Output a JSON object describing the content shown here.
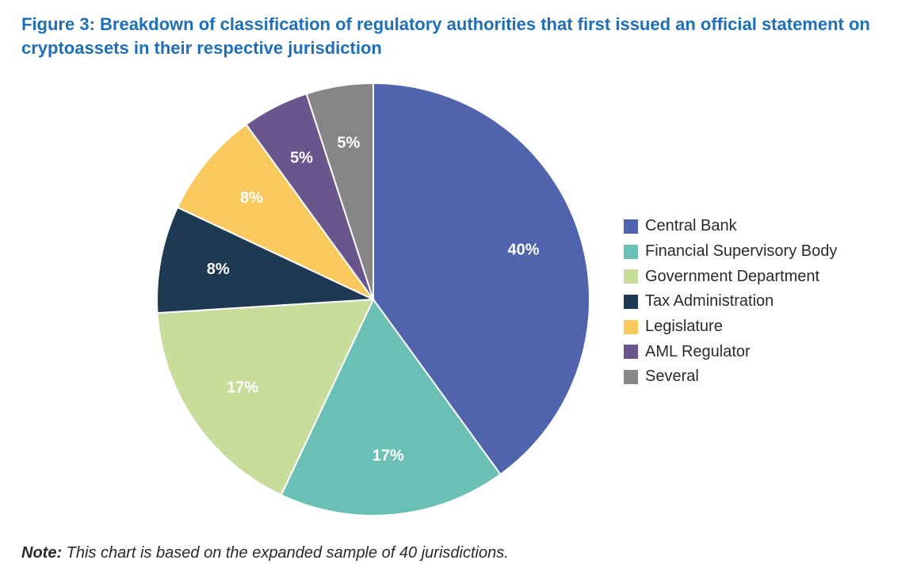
{
  "title": "Figure 3: Breakdown of classification of regulatory authorities that first issued an official statement on cryptoassets in their respective jurisdiction",
  "note": {
    "label": "Note:",
    "text": " This chart is based on the expanded sample of 40 jurisdictions."
  },
  "chart_data": {
    "type": "pie",
    "legend_position": "right",
    "slices": [
      {
        "name": "Central Bank",
        "value": 40,
        "label": "40%",
        "color": "#4f64ad"
      },
      {
        "name": "Financial Supervisory Body",
        "value": 17,
        "label": "17%",
        "color": "#6bc0b5"
      },
      {
        "name": "Government Department",
        "value": 17,
        "label": "17%",
        "color": "#c8dc9c"
      },
      {
        "name": "Tax Administration",
        "value": 8,
        "label": "8%",
        "color": "#1e3a52"
      },
      {
        "name": "Legislature",
        "value": 8,
        "label": "8%",
        "color": "#f9c95d"
      },
      {
        "name": "AML Regulator",
        "value": 5,
        "label": "5%",
        "color": "#6b558d"
      },
      {
        "name": "Several",
        "value": 5,
        "label": "5%",
        "color": "#868686"
      }
    ]
  }
}
